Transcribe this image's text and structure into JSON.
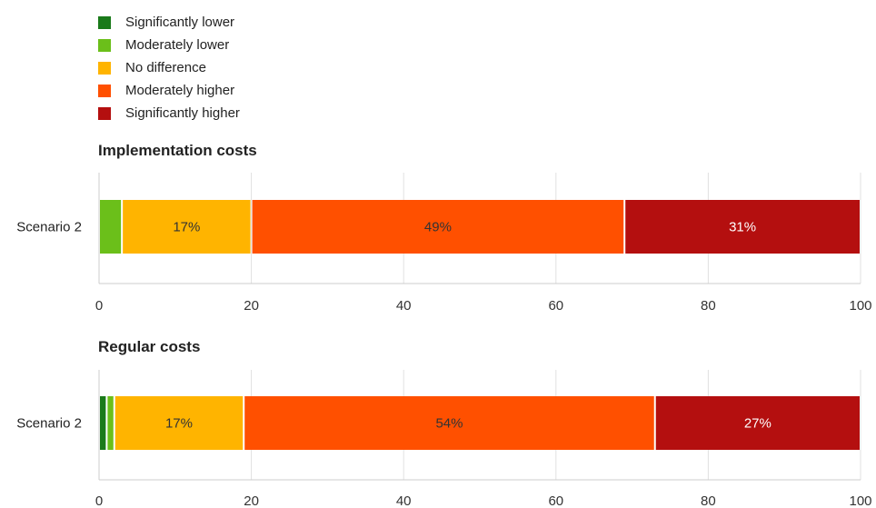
{
  "legend": [
    {
      "label": "Significantly lower",
      "color": "#1a7a1a"
    },
    {
      "label": "Moderately lower",
      "color": "#6bbf1a"
    },
    {
      "label": "No difference",
      "color": "#ffb400"
    },
    {
      "label": "Moderately higher",
      "color": "#ff5000"
    },
    {
      "label": "Significantly higher",
      "color": "#b40f0f"
    }
  ],
  "chart_data": [
    {
      "type": "bar",
      "orientation": "horizontal-stacked",
      "title": "Implementation costs",
      "categories": [
        "Scenario 2"
      ],
      "xlim": [
        0,
        100
      ],
      "xticks": [
        0,
        20,
        40,
        60,
        80,
        100
      ],
      "grid": true,
      "series": [
        {
          "name": "Significantly lower",
          "values": [
            0
          ]
        },
        {
          "name": "Moderately lower",
          "values": [
            3
          ]
        },
        {
          "name": "No difference",
          "values": [
            17
          ],
          "label": "17%"
        },
        {
          "name": "Moderately higher",
          "values": [
            49
          ],
          "label": "49%"
        },
        {
          "name": "Significantly higher",
          "values": [
            31
          ],
          "label": "31%"
        }
      ]
    },
    {
      "type": "bar",
      "orientation": "horizontal-stacked",
      "title": "Regular costs",
      "categories": [
        "Scenario 2"
      ],
      "xlim": [
        0,
        100
      ],
      "xticks": [
        0,
        20,
        40,
        60,
        80,
        100
      ],
      "grid": true,
      "series": [
        {
          "name": "Significantly lower",
          "values": [
            1
          ]
        },
        {
          "name": "Moderately lower",
          "values": [
            1
          ]
        },
        {
          "name": "No difference",
          "values": [
            17
          ],
          "label": "17%"
        },
        {
          "name": "Moderately higher",
          "values": [
            54
          ],
          "label": "54%"
        },
        {
          "name": "Significantly higher",
          "values": [
            27
          ],
          "label": "27%"
        }
      ]
    }
  ]
}
